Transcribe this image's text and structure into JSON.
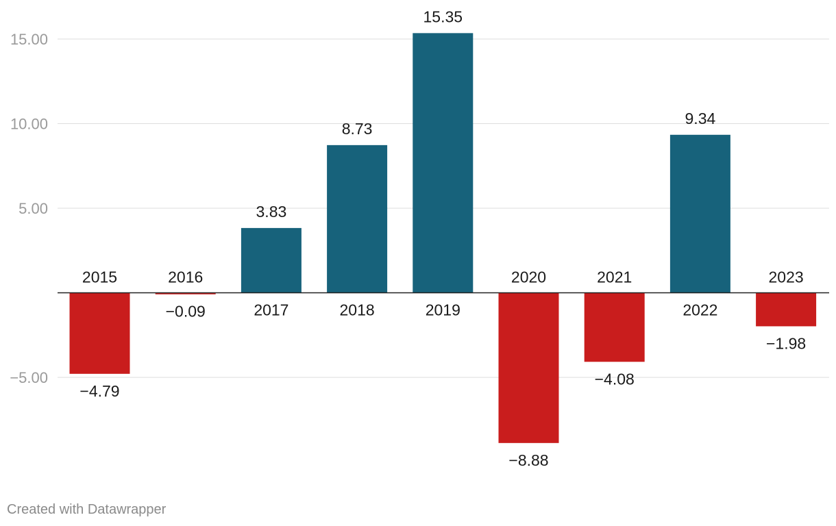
{
  "chart_data": {
    "type": "bar",
    "categories": [
      "2015",
      "2016",
      "2017",
      "2018",
      "2019",
      "2020",
      "2021",
      "2022",
      "2023"
    ],
    "values": [
      -4.79,
      -0.09,
      3.83,
      8.73,
      15.35,
      -8.88,
      -4.08,
      9.34,
      -1.98
    ],
    "value_labels": [
      "−4.79",
      "−0.09",
      "3.83",
      "8.73",
      "15.35",
      "−8.88",
      "−4.08",
      "9.34",
      "−1.98"
    ],
    "yticks": [
      -5,
      5,
      10,
      15
    ],
    "ytick_labels": [
      "−5.00",
      "5.00",
      "10.00",
      "15.00"
    ],
    "ylim": [
      -10,
      16.5
    ],
    "grid": true,
    "colors": {
      "positive": "#17627b",
      "negative": "#c91d1d"
    }
  },
  "footer": {
    "credit": "Created with Datawrapper"
  }
}
